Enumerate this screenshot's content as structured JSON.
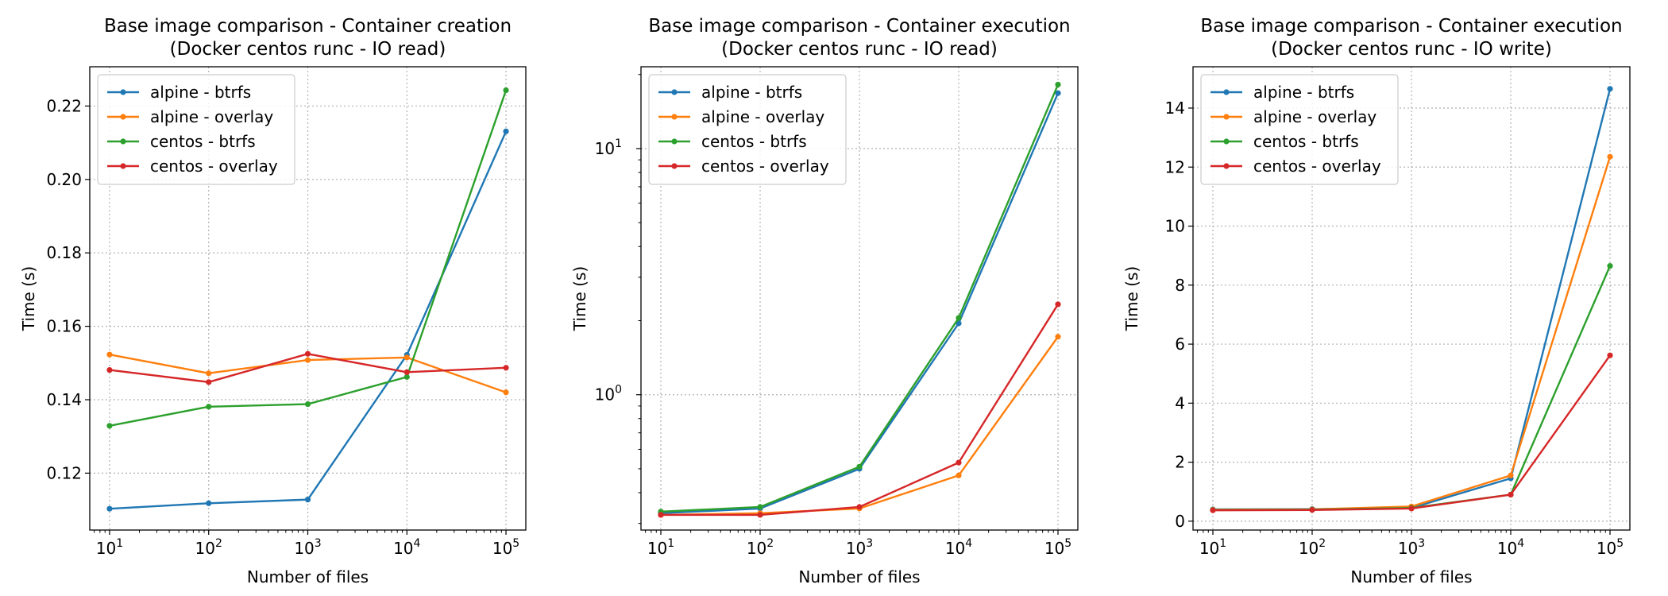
{
  "colors": {
    "alpine-btrfs": "#1f77b4",
    "alpine-overlay": "#ff7f0e",
    "centos-btrfs": "#2ca02c",
    "centos-overlay": "#d62728",
    "grid": "#b0b0b0"
  },
  "chart_data": [
    {
      "type": "line",
      "title_line1": "Base image comparison - Container creation",
      "title_line2": "(Docker centos runc - IO read)",
      "xlabel": "Number of files",
      "ylabel": "Time (s)",
      "x": [
        10,
        100,
        1000,
        10000,
        100000
      ],
      "x_scale": "log",
      "x_ticks": [
        {
          "value": 10,
          "base": "10",
          "exp": "1"
        },
        {
          "value": 100,
          "base": "10",
          "exp": "2"
        },
        {
          "value": 1000,
          "base": "10",
          "exp": "3"
        },
        {
          "value": 10000,
          "base": "10",
          "exp": "4"
        },
        {
          "value": 100000,
          "base": "10",
          "exp": "5"
        }
      ],
      "y_scale": "linear",
      "ylim": [
        0.1045,
        0.2307
      ],
      "y_ticks": [
        {
          "value": 0.12,
          "label": "0.12"
        },
        {
          "value": 0.14,
          "label": "0.14"
        },
        {
          "value": 0.16,
          "label": "0.16"
        },
        {
          "value": 0.18,
          "label": "0.18"
        },
        {
          "value": 0.2,
          "label": "0.20"
        },
        {
          "value": 0.22,
          "label": "0.22"
        }
      ],
      "grid": true,
      "legend": "top-left",
      "series": [
        {
          "name": "alpine - btrfs",
          "key": "alpine-btrfs",
          "values": [
            0.1103,
            0.1118,
            0.1128,
            0.1522,
            0.2131
          ]
        },
        {
          "name": "alpine - overlay",
          "key": "alpine-overlay",
          "values": [
            0.1523,
            0.1472,
            0.1508,
            0.1515,
            0.142
          ]
        },
        {
          "name": "centos - btrfs",
          "key": "centos-btrfs",
          "values": [
            0.1329,
            0.1381,
            0.1388,
            0.1462,
            0.2243
          ]
        },
        {
          "name": "centos - overlay",
          "key": "centos-overlay",
          "values": [
            0.1481,
            0.1448,
            0.1525,
            0.1475,
            0.1487
          ]
        }
      ]
    },
    {
      "type": "line",
      "title_line1": "Base image comparison - Container execution",
      "title_line2": "(Docker centos runc - IO read)",
      "xlabel": "Number of files",
      "ylabel": "Time (s)",
      "x": [
        10,
        100,
        1000,
        10000,
        100000
      ],
      "x_scale": "log",
      "x_ticks": [
        {
          "value": 10,
          "base": "10",
          "exp": "1"
        },
        {
          "value": 100,
          "base": "10",
          "exp": "2"
        },
        {
          "value": 1000,
          "base": "10",
          "exp": "3"
        },
        {
          "value": 10000,
          "base": "10",
          "exp": "4"
        },
        {
          "value": 100000,
          "base": "10",
          "exp": "5"
        }
      ],
      "y_scale": "log",
      "ylim": [
        0.282,
        21.5
      ],
      "y_ticks": [
        {
          "value": 1,
          "base": "10",
          "exp": "0"
        },
        {
          "value": 10,
          "base": "10",
          "exp": "1"
        }
      ],
      "grid": true,
      "legend": "top-left",
      "series": [
        {
          "name": "alpine - btrfs",
          "key": "alpine-btrfs",
          "values": [
            0.33,
            0.345,
            0.5,
            1.95,
            16.8
          ]
        },
        {
          "name": "alpine - overlay",
          "key": "alpine-overlay",
          "values": [
            0.325,
            0.33,
            0.345,
            0.47,
            1.72
          ]
        },
        {
          "name": "centos - btrfs",
          "key": "centos-btrfs",
          "values": [
            0.335,
            0.35,
            0.51,
            2.05,
            18.2
          ]
        },
        {
          "name": "centos - overlay",
          "key": "centos-overlay",
          "values": [
            0.325,
            0.325,
            0.35,
            0.53,
            2.33
          ]
        }
      ]
    },
    {
      "type": "line",
      "title_line1": "Base image comparison - Container execution",
      "title_line2": "(Docker centos runc - IO write)",
      "xlabel": "Number of files",
      "ylabel": "Time (s)",
      "x": [
        10,
        100,
        1000,
        10000,
        100000
      ],
      "x_scale": "log",
      "x_ticks": [
        {
          "value": 10,
          "base": "10",
          "exp": "1"
        },
        {
          "value": 100,
          "base": "10",
          "exp": "2"
        },
        {
          "value": 1000,
          "base": "10",
          "exp": "3"
        },
        {
          "value": 10000,
          "base": "10",
          "exp": "4"
        },
        {
          "value": 100000,
          "base": "10",
          "exp": "5"
        }
      ],
      "y_scale": "linear",
      "ylim": [
        -0.3,
        15.4
      ],
      "y_ticks": [
        {
          "value": 0,
          "label": "0"
        },
        {
          "value": 2,
          "label": "2"
        },
        {
          "value": 4,
          "label": "4"
        },
        {
          "value": 6,
          "label": "6"
        },
        {
          "value": 8,
          "label": "8"
        },
        {
          "value": 10,
          "label": "10"
        },
        {
          "value": 12,
          "label": "12"
        },
        {
          "value": 14,
          "label": "14"
        }
      ],
      "grid": true,
      "legend": "top-left",
      "series": [
        {
          "name": "alpine - btrfs",
          "key": "alpine-btrfs",
          "values": [
            0.4,
            0.41,
            0.45,
            1.45,
            14.65
          ]
        },
        {
          "name": "alpine - overlay",
          "key": "alpine-overlay",
          "values": [
            0.39,
            0.4,
            0.5,
            1.55,
            12.35
          ]
        },
        {
          "name": "centos - btrfs",
          "key": "centos-btrfs",
          "values": [
            0.38,
            0.39,
            0.45,
            0.9,
            8.65
          ]
        },
        {
          "name": "centos - overlay",
          "key": "centos-overlay",
          "values": [
            0.37,
            0.38,
            0.43,
            0.9,
            5.62
          ]
        }
      ]
    }
  ]
}
